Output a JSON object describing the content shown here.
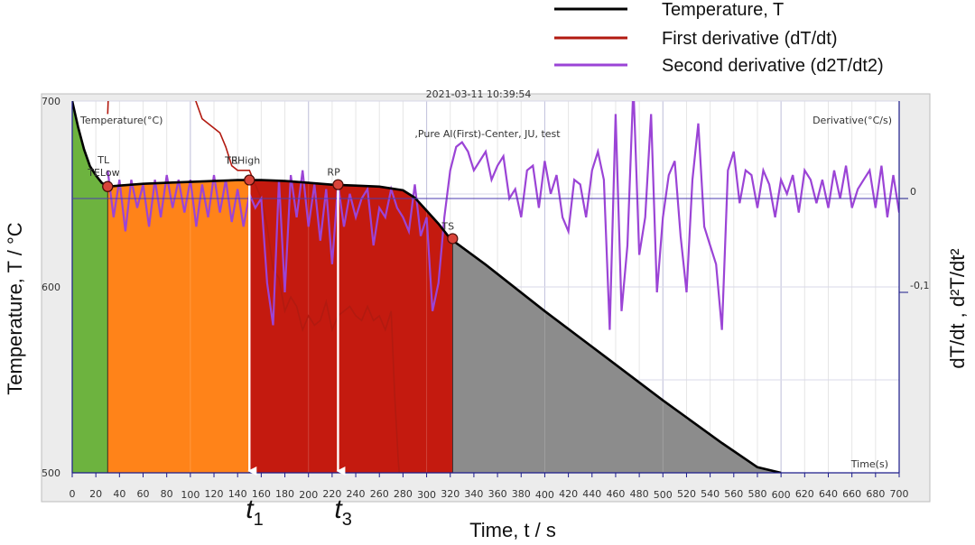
{
  "legend": {
    "items": [
      {
        "label": "Temperature, T",
        "color": "#000000"
      },
      {
        "label": "First derivative (dT/dt)",
        "color": "#b21a10"
      },
      {
        "label": "Second derivative (d2T/dt2)",
        "color": "#9b44d6"
      }
    ]
  },
  "figure": {
    "header_text": "2021-03-11 10:39:54",
    "inner_title": ",Pure Al(First)-Center, JU, test",
    "inner_temp_axis_label": "Temperature(°C)",
    "inner_deriv_axis_label": "Derivative(°C/s)",
    "inner_time_label": "Time(s)",
    "ylabel": "Temperature, T / °C",
    "ylabel_right": "dT/dt , d²T/dt²",
    "xlabel": "Time, t / s"
  },
  "colors": {
    "green": "#6db33f",
    "orange": "#ff8319",
    "red": "#c41a0f",
    "gray": "#8c8c8c",
    "temperature": "#000000",
    "first_derivative": "#b21a10",
    "second_derivative": "#9b44d6",
    "marker": "#d9443a",
    "arrow": "#ffffff"
  },
  "chart_data": {
    "type": "line",
    "title": ",Pure Al(First)-Center, JU, test",
    "xlabel": "Time, t / s",
    "ylabel": "Temperature, T / °C",
    "xlim": [
      0,
      700
    ],
    "ylim": [
      500,
      700
    ],
    "x_ticks_minor": [
      0,
      20,
      40,
      60,
      80,
      120,
      140,
      160,
      180,
      220,
      240,
      260,
      280,
      320,
      340,
      360,
      380,
      420,
      440,
      460,
      480,
      520,
      540,
      560,
      580,
      620,
      640,
      660,
      680,
      700
    ],
    "x_ticks_major": [
      100,
      200,
      300,
      400,
      500,
      600
    ],
    "y_ticks": [
      500,
      600,
      700
    ],
    "y2_ticks": [
      "0",
      "-0,1"
    ],
    "series": [
      {
        "name": "Temperature, T",
        "x": [
          0,
          5,
          10,
          15,
          20,
          25,
          30,
          40,
          60,
          80,
          100,
          120,
          140,
          160,
          180,
          200,
          220,
          240,
          260,
          280,
          290,
          300,
          310,
          320,
          350,
          400,
          450,
          500,
          550,
          580,
          600
        ],
        "y": [
          700,
          686,
          674,
          665,
          660,
          656,
          654,
          654.5,
          655.5,
          656,
          656.5,
          657,
          657.5,
          657.5,
          657,
          656,
          655,
          654.5,
          654,
          652,
          648,
          641,
          634,
          626,
          612,
          587,
          563,
          539,
          516,
          503,
          500
        ]
      },
      {
        "name": "First derivative (dT/dt)",
        "x": [
          30,
          32,
          34,
          38,
          40,
          45,
          50,
          55,
          60,
          65,
          70,
          75,
          80,
          85,
          90,
          100,
          110,
          120,
          125,
          130,
          135,
          140,
          145,
          150,
          155,
          160,
          165,
          170,
          175,
          180,
          185,
          190,
          195,
          200,
          205,
          210,
          215,
          220,
          225,
          230,
          235,
          240,
          245,
          250,
          255,
          260,
          265,
          270,
          273,
          276,
          280,
          283
        ],
        "y": [
          0.09,
          0.16,
          0.17,
          0.15,
          0.17,
          0.16,
          0.18,
          0.15,
          0.17,
          0.14,
          0.16,
          0.13,
          0.15,
          0.12,
          0.13,
          0.12,
          0.085,
          0.075,
          0.07,
          0.055,
          0.035,
          0.03,
          0.03,
          0.03,
          0.015,
          0.0,
          -0.03,
          -0.075,
          -0.085,
          -0.12,
          -0.105,
          -0.115,
          -0.14,
          -0.125,
          -0.135,
          -0.13,
          -0.11,
          -0.14,
          -0.125,
          -0.12,
          -0.115,
          -0.125,
          -0.13,
          -0.115,
          -0.13,
          -0.125,
          -0.14,
          -0.12,
          -0.21,
          -0.28,
          -0.34,
          -0.38
        ]
      },
      {
        "name": "Second derivative (d2T/dt2)",
        "x": [
          30,
          35,
          40,
          45,
          50,
          55,
          60,
          65,
          70,
          75,
          80,
          85,
          90,
          95,
          100,
          105,
          110,
          115,
          120,
          125,
          130,
          135,
          140,
          145,
          150,
          155,
          160,
          165,
          170,
          175,
          180,
          185,
          190,
          195,
          200,
          205,
          210,
          215,
          220,
          225,
          230,
          235,
          240,
          245,
          250,
          255,
          260,
          265,
          270,
          275,
          280,
          285,
          290,
          295,
          300,
          305,
          310,
          315,
          320,
          325,
          330,
          335,
          340,
          345,
          350,
          355,
          360,
          365,
          370,
          375,
          380,
          385,
          390,
          395,
          400,
          405,
          410,
          415,
          420,
          425,
          430,
          435,
          440,
          445,
          450,
          455,
          460,
          465,
          470,
          475,
          480,
          485,
          490,
          495,
          500,
          505,
          510,
          515,
          520,
          525,
          530,
          535,
          540,
          545,
          550,
          555,
          560,
          565,
          570,
          575,
          580,
          585,
          590,
          595,
          600,
          605,
          610,
          615,
          620,
          625,
          630,
          635,
          640,
          645,
          650,
          655,
          660,
          665,
          670,
          675,
          680,
          685,
          690,
          695,
          700
        ],
        "y": [
          0.03,
          -0.02,
          0.02,
          -0.035,
          0.02,
          -0.01,
          0.015,
          -0.03,
          0.02,
          -0.02,
          0.025,
          -0.01,
          0.02,
          -0.015,
          0.02,
          -0.03,
          0.015,
          -0.02,
          0.025,
          -0.015,
          0.02,
          -0.025,
          0.01,
          -0.03,
          0.005,
          -0.01,
          0.0,
          -0.09,
          -0.135,
          0.02,
          -0.1,
          0.025,
          -0.02,
          0.03,
          -0.03,
          0.015,
          -0.045,
          0.01,
          -0.07,
          0.015,
          -0.03,
          0.005,
          -0.02,
          0.0,
          0.01,
          -0.05,
          -0.01,
          -0.02,
          0.01,
          -0.01,
          -0.02,
          -0.035,
          0.015,
          -0.04,
          -0.02,
          -0.12,
          -0.09,
          -0.02,
          0.03,
          0.055,
          0.06,
          0.05,
          0.03,
          0.04,
          0.05,
          0.02,
          0.035,
          0.045,
          0.0,
          0.01,
          -0.02,
          0.03,
          0.035,
          -0.01,
          0.04,
          0.005,
          0.025,
          -0.02,
          -0.035,
          0.02,
          0.015,
          -0.02,
          0.03,
          0.05,
          0.02,
          -0.14,
          0.09,
          -0.12,
          -0.05,
          0.12,
          -0.06,
          -0.02,
          0.09,
          -0.1,
          -0.02,
          0.025,
          0.04,
          -0.04,
          -0.1,
          0.02,
          0.08,
          -0.03,
          -0.05,
          -0.07,
          -0.14,
          0.03,
          0.05,
          -0.005,
          0.03,
          0.025,
          -0.01,
          0.03,
          0.015,
          -0.02,
          0.02,
          0.005,
          0.025,
          -0.015,
          0.03,
          0.02,
          -0.005,
          0.02,
          -0.01,
          0.03,
          0.0,
          0.035,
          -0.01,
          0.01,
          0.02,
          0.03,
          -0.01,
          0.035,
          -0.02,
          0.025,
          -0.015
        ]
      }
    ],
    "regions": [
      {
        "from": 0,
        "to": 30,
        "color": "green"
      },
      {
        "from": 30,
        "to": 150,
        "color": "orange"
      },
      {
        "from": 150,
        "to": 322,
        "color": "red"
      },
      {
        "from": 322,
        "to": 600,
        "color": "gray"
      }
    ],
    "points": [
      {
        "label": "TL",
        "x": 30,
        "y": 654
      },
      {
        "label": "TELow",
        "x": 30,
        "y": 654
      },
      {
        "label": "TEHigh",
        "x": 150,
        "y": 657.5
      },
      {
        "label": "TR",
        "x": 150,
        "y": 657.5
      },
      {
        "label": "RP",
        "x": 225,
        "y": 655
      },
      {
        "label": "TS",
        "x": 322,
        "y": 626
      }
    ],
    "arrows": [
      {
        "label": "t",
        "subscript": "1",
        "x": 150
      },
      {
        "label": "t",
        "subscript": "3",
        "x": 225
      }
    ]
  }
}
